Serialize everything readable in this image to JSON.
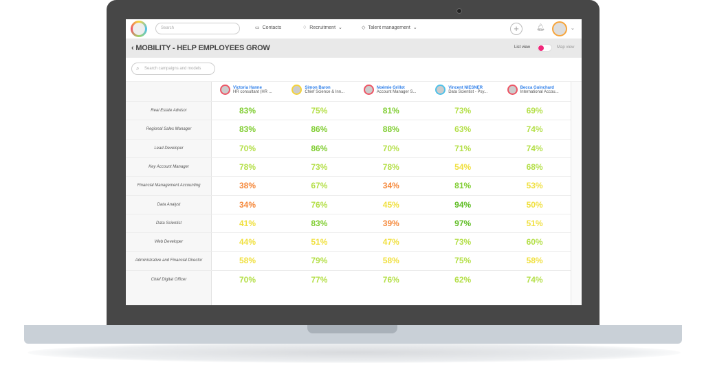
{
  "nav": {
    "search_placeholder": "Search",
    "contacts": "Contacts",
    "recruitment": "Recruitment",
    "talent": "Talent management"
  },
  "page": {
    "title": "MOBILITY - HELP EMPLOYEES GROW",
    "list_view": "List view",
    "map_view": "Map view",
    "search_placeholder": "Search campaigns and models"
  },
  "colors": {
    "low": "#f5883a",
    "mid": "#f0e040",
    "good": "#b4df48",
    "high": "#7fcd30",
    "top": "#5fbd24"
  },
  "people": [
    {
      "name": "Victoria Hanne",
      "role": "HR consultant (HR ...",
      "ring": "#ed5565"
    },
    {
      "name": "Simon Baron",
      "role": "Chief Science & Inn...",
      "ring": "#f5d33a"
    },
    {
      "name": "Noémie Grillot",
      "role": "Account Manager S...",
      "ring": "#ed5565"
    },
    {
      "name": "Vincent NIESNER",
      "role": "Data Scientist - Psy...",
      "ring": "#4fc1e9"
    },
    {
      "name": "Becca Guinchard",
      "role": "International Accou...",
      "ring": "#ed5565"
    }
  ],
  "rows": [
    {
      "label": "Real Estate Advisor",
      "values": [
        "83%",
        "75%",
        "81%",
        "73%",
        "69%"
      ]
    },
    {
      "label": "Regional Sales Manager",
      "values": [
        "83%",
        "86%",
        "88%",
        "63%",
        "74%"
      ]
    },
    {
      "label": "Lead Developer",
      "values": [
        "70%",
        "86%",
        "70%",
        "71%",
        "74%"
      ]
    },
    {
      "label": "Key Account Manager",
      "values": [
        "78%",
        "73%",
        "78%",
        "54%",
        "68%"
      ]
    },
    {
      "label": "Financial Management Accounting",
      "values": [
        "38%",
        "67%",
        "34%",
        "81%",
        "53%"
      ]
    },
    {
      "label": "Data Analyst",
      "values": [
        "34%",
        "76%",
        "45%",
        "94%",
        "50%"
      ]
    },
    {
      "label": "Data Scientist",
      "values": [
        "41%",
        "83%",
        "39%",
        "97%",
        "51%"
      ]
    },
    {
      "label": "Web Developer",
      "values": [
        "44%",
        "51%",
        "47%",
        "73%",
        "60%"
      ]
    },
    {
      "label": "Administrative and Financial Director",
      "values": [
        "58%",
        "79%",
        "58%",
        "75%",
        "58%"
      ]
    },
    {
      "label": "Chief Digital Officer",
      "values": [
        "70%",
        "77%",
        "76%",
        "62%",
        "74%"
      ]
    }
  ]
}
